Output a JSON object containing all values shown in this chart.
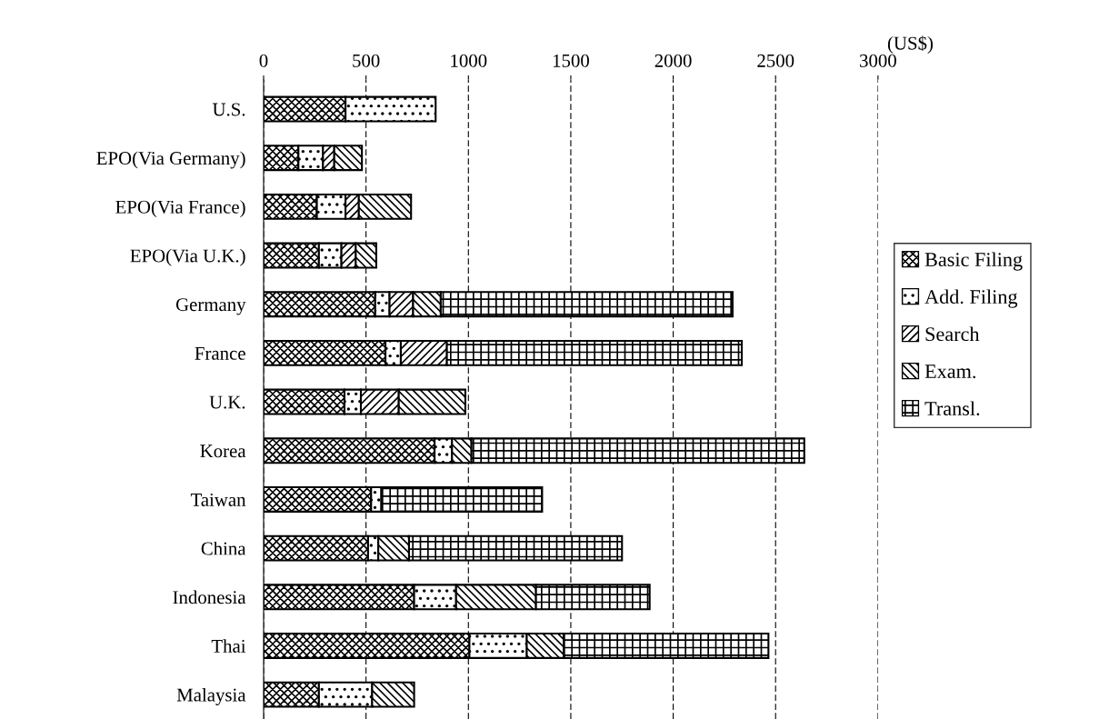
{
  "chart_data": {
    "type": "bar",
    "orientation": "horizontal",
    "stacked": true,
    "categories": [
      "U.S.",
      "EPO(Via Germany)",
      "EPO(Via France)",
      "EPO(Via U.K.)",
      "Germany",
      "France",
      "U.K.",
      "Korea",
      "Taiwan",
      "China",
      "Indonesia",
      "Thai",
      "Malaysia"
    ],
    "series": [
      {
        "name": "Basic Filing",
        "color": "#000000",
        "values": [
          400,
          170,
          260,
          270,
          545,
          595,
          395,
          835,
          525,
          510,
          735,
          1005,
          270
        ]
      },
      {
        "name": "Add. Filing",
        "color": "#000000",
        "values": [
          440,
          120,
          140,
          110,
          70,
          75,
          80,
          85,
          50,
          50,
          205,
          280,
          260
        ]
      },
      {
        "name": "Search",
        "color": "#000000",
        "values": [
          null,
          55,
          65,
          70,
          115,
          225,
          185,
          null,
          null,
          null,
          null,
          null,
          null
        ]
      },
      {
        "name": "Exam.",
        "color": "#000000",
        "values": [
          null,
          135,
          255,
          100,
          135,
          null,
          325,
          95,
          null,
          150,
          390,
          180,
          205
        ]
      },
      {
        "name": "Transl.",
        "color": "#000000",
        "values": [
          null,
          null,
          null,
          null,
          1425,
          1440,
          null,
          1625,
          785,
          1040,
          555,
          1000,
          null
        ]
      }
    ],
    "xlim": [
      0,
      3000
    ],
    "xticks": [
      0,
      500,
      1000,
      1500,
      2000,
      2500,
      3000
    ],
    "xlabel": "(US$)",
    "grid": "x",
    "legend": "right"
  }
}
